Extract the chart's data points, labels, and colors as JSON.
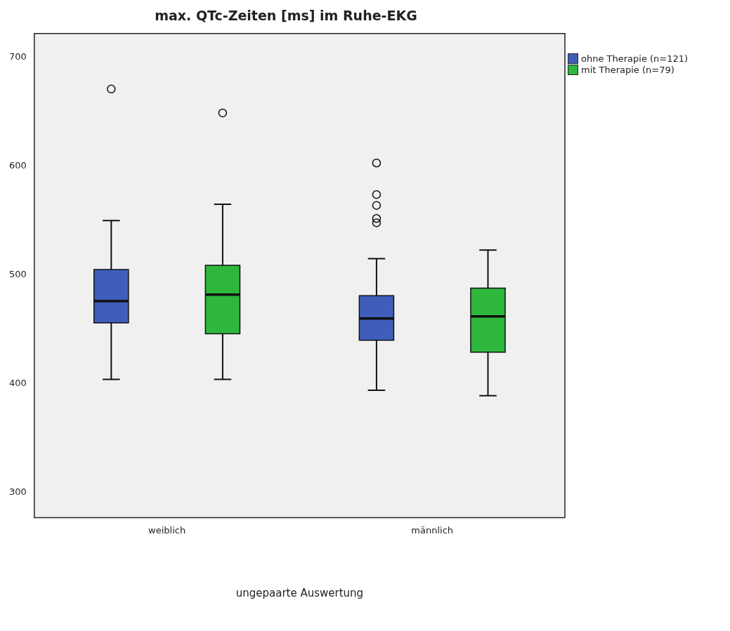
{
  "chart_data": {
    "type": "box",
    "title": "max. QTc-Zeiten [ms] im Ruhe-EKG",
    "xlabel": "ungepaarte Auswertung",
    "categories": [
      "weiblich",
      "männlich"
    ],
    "series": [
      {
        "name": "ohne Therapie (n=121)",
        "color": "#3f5eba",
        "boxes": [
          {
            "low": 404,
            "q1": 456,
            "median": 476,
            "q3": 505,
            "high": 550,
            "outliers": [
              671
            ]
          },
          {
            "low": 394,
            "q1": 440,
            "median": 460,
            "q3": 481,
            "high": 515,
            "outliers": [
              603,
              574,
              564,
              552,
              548
            ]
          }
        ]
      },
      {
        "name": "mit Therapie (n=79)",
        "color": "#2db83d",
        "boxes": [
          {
            "low": 404,
            "q1": 446,
            "median": 482,
            "q3": 509,
            "high": 565,
            "outliers": [
              649
            ]
          },
          {
            "low": 389,
            "q1": 429,
            "median": 462,
            "q3": 488,
            "high": 523
          }
        ]
      }
    ],
    "ylim": [
      277,
      722
    ],
    "yticks": [
      300,
      400,
      500,
      600,
      700
    ],
    "grid": false,
    "legend": "top right"
  }
}
